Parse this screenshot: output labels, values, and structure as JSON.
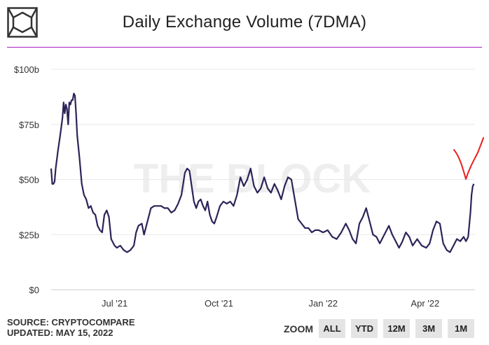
{
  "header": {
    "title": "Daily Exchange Volume (7DMA)"
  },
  "footer": {
    "source": "SOURCE: CRYPTOCOMPARE",
    "updated": "UPDATED: MAY 15, 2022"
  },
  "zoom": {
    "label": "ZOOM",
    "buttons": [
      "ALL",
      "YTD",
      "12M",
      "3M",
      "1M"
    ]
  },
  "watermark": "THE BLOCK",
  "colors": {
    "line": "#2b2458",
    "annotation": "#e8201f",
    "title_rule": "#a020c0",
    "grid": "#e8e8e8"
  },
  "chart_data": {
    "type": "line",
    "title": "Daily Exchange Volume (7DMA)",
    "xlabel": "",
    "ylabel": "",
    "y_ticks": [
      "$0",
      "$25b",
      "$50b",
      "$75b",
      "$100b"
    ],
    "y_tick_values": [
      0,
      25,
      50,
      75,
      100
    ],
    "ylim": [
      0,
      100
    ],
    "x_ticks": [
      "Jul '21",
      "Oct '21",
      "Jan '22",
      "Apr '22"
    ],
    "x_tick_dates": [
      "2021-07-01",
      "2021-10-01",
      "2022-01-01",
      "2022-04-01"
    ],
    "xlim": [
      "2021-05-06",
      "2022-05-15"
    ],
    "grid": true,
    "legend": "none",
    "series": [
      {
        "unit": "billion USD",
        "points": [
          [
            "2021-05-06",
            55
          ],
          [
            "2021-05-07",
            48
          ],
          [
            "2021-05-08",
            48
          ],
          [
            "2021-05-09",
            49
          ],
          [
            "2021-05-10",
            55
          ],
          [
            "2021-05-12",
            63
          ],
          [
            "2021-05-14",
            70
          ],
          [
            "2021-05-16",
            78
          ],
          [
            "2021-05-17",
            85
          ],
          [
            "2021-05-18",
            80
          ],
          [
            "2021-05-19",
            84
          ],
          [
            "2021-05-20",
            82
          ],
          [
            "2021-05-21",
            75
          ],
          [
            "2021-05-22",
            85
          ],
          [
            "2021-05-23",
            84
          ],
          [
            "2021-05-24",
            86
          ],
          [
            "2021-05-25",
            86
          ],
          [
            "2021-05-26",
            89
          ],
          [
            "2021-05-27",
            88
          ],
          [
            "2021-05-28",
            80
          ],
          [
            "2021-05-29",
            70
          ],
          [
            "2021-05-31",
            60
          ],
          [
            "2021-06-02",
            48
          ],
          [
            "2021-06-04",
            43
          ],
          [
            "2021-06-06",
            41
          ],
          [
            "2021-06-08",
            37
          ],
          [
            "2021-06-10",
            38
          ],
          [
            "2021-06-12",
            35
          ],
          [
            "2021-06-14",
            34
          ],
          [
            "2021-06-16",
            29
          ],
          [
            "2021-06-18",
            27
          ],
          [
            "2021-06-20",
            26
          ],
          [
            "2021-06-22",
            34
          ],
          [
            "2021-06-24",
            36
          ],
          [
            "2021-06-26",
            33
          ],
          [
            "2021-06-28",
            23
          ],
          [
            "2021-07-01",
            20
          ],
          [
            "2021-07-03",
            19
          ],
          [
            "2021-07-06",
            20
          ],
          [
            "2021-07-09",
            18
          ],
          [
            "2021-07-12",
            17
          ],
          [
            "2021-07-15",
            18
          ],
          [
            "2021-07-18",
            20
          ],
          [
            "2021-07-20",
            26
          ],
          [
            "2021-07-22",
            29
          ],
          [
            "2021-07-25",
            30
          ],
          [
            "2021-07-27",
            25
          ],
          [
            "2021-07-30",
            31
          ],
          [
            "2021-08-02",
            37
          ],
          [
            "2021-08-05",
            38
          ],
          [
            "2021-08-08",
            38
          ],
          [
            "2021-08-11",
            38
          ],
          [
            "2021-08-14",
            37
          ],
          [
            "2021-08-17",
            37
          ],
          [
            "2021-08-20",
            35
          ],
          [
            "2021-08-23",
            36
          ],
          [
            "2021-08-26",
            39
          ],
          [
            "2021-08-29",
            43
          ],
          [
            "2021-09-01",
            53
          ],
          [
            "2021-09-03",
            55
          ],
          [
            "2021-09-05",
            54
          ],
          [
            "2021-09-07",
            47
          ],
          [
            "2021-09-09",
            40
          ],
          [
            "2021-09-11",
            37
          ],
          [
            "2021-09-13",
            40
          ],
          [
            "2021-09-15",
            41
          ],
          [
            "2021-09-17",
            38
          ],
          [
            "2021-09-19",
            36
          ],
          [
            "2021-09-21",
            40
          ],
          [
            "2021-09-23",
            34
          ],
          [
            "2021-09-25",
            31
          ],
          [
            "2021-09-27",
            30
          ],
          [
            "2021-09-29",
            33
          ],
          [
            "2021-10-02",
            38
          ],
          [
            "2021-10-05",
            40
          ],
          [
            "2021-10-08",
            39
          ],
          [
            "2021-10-11",
            40
          ],
          [
            "2021-10-14",
            38
          ],
          [
            "2021-10-17",
            43
          ],
          [
            "2021-10-20",
            51
          ],
          [
            "2021-10-23",
            47
          ],
          [
            "2021-10-26",
            50
          ],
          [
            "2021-10-29",
            55
          ],
          [
            "2021-11-01",
            47
          ],
          [
            "2021-11-04",
            44
          ],
          [
            "2021-11-07",
            46
          ],
          [
            "2021-11-10",
            51
          ],
          [
            "2021-11-13",
            46
          ],
          [
            "2021-11-16",
            44
          ],
          [
            "2021-11-19",
            48
          ],
          [
            "2021-11-22",
            45
          ],
          [
            "2021-11-25",
            41
          ],
          [
            "2021-11-28",
            47
          ],
          [
            "2021-12-01",
            51
          ],
          [
            "2021-12-04",
            50
          ],
          [
            "2021-12-07",
            41
          ],
          [
            "2021-12-10",
            32
          ],
          [
            "2021-12-13",
            30
          ],
          [
            "2021-12-16",
            28
          ],
          [
            "2021-12-19",
            28
          ],
          [
            "2021-12-22",
            26
          ],
          [
            "2021-12-25",
            27
          ],
          [
            "2021-12-28",
            27
          ],
          [
            "2022-01-01",
            26
          ],
          [
            "2022-01-05",
            27
          ],
          [
            "2022-01-09",
            24
          ],
          [
            "2022-01-13",
            23
          ],
          [
            "2022-01-17",
            26
          ],
          [
            "2022-01-21",
            30
          ],
          [
            "2022-01-24",
            27
          ],
          [
            "2022-01-27",
            23
          ],
          [
            "2022-01-30",
            21
          ],
          [
            "2022-02-02",
            30
          ],
          [
            "2022-02-05",
            33
          ],
          [
            "2022-02-08",
            37
          ],
          [
            "2022-02-11",
            31
          ],
          [
            "2022-02-14",
            25
          ],
          [
            "2022-02-17",
            24
          ],
          [
            "2022-02-20",
            21
          ],
          [
            "2022-02-24",
            25
          ],
          [
            "2022-02-28",
            29
          ],
          [
            "2022-03-03",
            25
          ],
          [
            "2022-03-06",
            22
          ],
          [
            "2022-03-09",
            19
          ],
          [
            "2022-03-12",
            22
          ],
          [
            "2022-03-15",
            26
          ],
          [
            "2022-03-18",
            24
          ],
          [
            "2022-03-21",
            20
          ],
          [
            "2022-03-25",
            23
          ],
          [
            "2022-03-29",
            20
          ],
          [
            "2022-04-02",
            19
          ],
          [
            "2022-04-05",
            21
          ],
          [
            "2022-04-08",
            27
          ],
          [
            "2022-04-11",
            31
          ],
          [
            "2022-04-14",
            30
          ],
          [
            "2022-04-17",
            21
          ],
          [
            "2022-04-20",
            18
          ],
          [
            "2022-04-23",
            17
          ],
          [
            "2022-04-26",
            20
          ],
          [
            "2022-04-29",
            23
          ],
          [
            "2022-05-02",
            22
          ],
          [
            "2022-05-05",
            24
          ],
          [
            "2022-05-07",
            22
          ],
          [
            "2022-05-09",
            24
          ],
          [
            "2022-05-11",
            35
          ],
          [
            "2022-05-12",
            43
          ],
          [
            "2022-05-13",
            47
          ],
          [
            "2022-05-14",
            48
          ]
        ]
      }
    ]
  }
}
